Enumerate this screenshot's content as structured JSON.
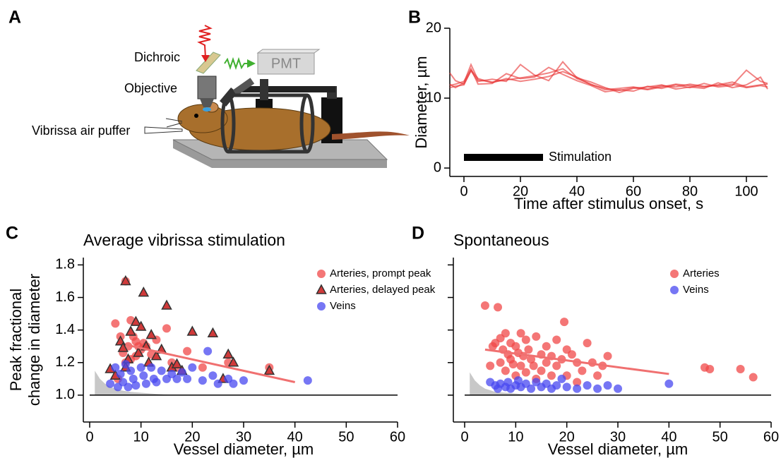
{
  "diagram": {
    "panel": "A",
    "dichroic": "Dichroic",
    "pmt": "PMT",
    "objective": "Objective",
    "puffer": "Vibrissa air puffer"
  },
  "chart_data": [
    {
      "type": "line",
      "panel": "B",
      "xlabel": "Time after stimulus onset, s",
      "ylabel": "Diameter, µm",
      "xlim": [
        -5,
        107.5
      ],
      "ylim": [
        -1.2,
        20
      ],
      "xticks": [
        0,
        20,
        40,
        60,
        80,
        100
      ],
      "yticks": [
        0,
        10,
        20
      ],
      "stimulation": {
        "label": "Stimulation",
        "span": [
          0,
          28
        ]
      },
      "x": [
        -5,
        -3,
        0,
        2.5,
        5,
        10,
        15,
        20,
        25,
        30,
        35,
        40,
        45,
        50,
        55,
        60,
        65,
        70,
        75,
        80,
        85,
        90,
        95,
        100,
        105,
        107.5
      ],
      "series": [
        {
          "color": "#e83030",
          "values": [
            12,
            11.5,
            12.2,
            14.8,
            12.6,
            12.3,
            12.6,
            12.9,
            13.2,
            13.6,
            14.2,
            12.8,
            12.0,
            11.2,
            11.4,
            11.6,
            11.3,
            11.8,
            11.6,
            12.0,
            11.7,
            11.8,
            12.0,
            11.5,
            11.8,
            11.6
          ]
        },
        {
          "color": "#e83030",
          "values": [
            11.8,
            12.0,
            12.4,
            14.2,
            12.0,
            12.1,
            13.5,
            12.8,
            13.0,
            14.4,
            13.4,
            12.5,
            11.8,
            10.9,
            11.2,
            11.0,
            11.7,
            11.4,
            11.9,
            11.5,
            12.1,
            11.6,
            11.8,
            14.0,
            12.4,
            12.1
          ]
        },
        {
          "color": "#e83030",
          "values": [
            13.6,
            12.5,
            12.0,
            13.9,
            12.4,
            12.7,
            12.4,
            14.8,
            13.3,
            12.5,
            15.2,
            12.9,
            12.3,
            11.5,
            10.8,
            11.4,
            11.6,
            11.9,
            11.3,
            11.6,
            11.4,
            12.2,
            11.5,
            11.9,
            13.0,
            11.3
          ]
        },
        {
          "color": "#e83030",
          "values": [
            11.5,
            11.7,
            11.9,
            14.0,
            12.8,
            12.2,
            12.8,
            12.4,
            12.7,
            13.1,
            13.8,
            13.0,
            11.9,
            11.4,
            11.1,
            11.5,
            11.2,
            11.6,
            12.0,
            11.8,
            11.6,
            11.9,
            12.3,
            11.6,
            11.9,
            12.0
          ]
        }
      ]
    },
    {
      "type": "scatter",
      "panel": "C",
      "title": "Average vibrissa stimulation",
      "xlabel": "Vessel diameter, µm",
      "ylabel": [
        "Peak fractional",
        "change in diameter"
      ],
      "xlim": [
        0,
        60
      ],
      "ylim": [
        0.835,
        1.845
      ],
      "xticks": [
        0,
        10,
        20,
        30,
        40,
        50,
        60
      ],
      "yticks": [
        {
          "value": 1.0,
          "label": "1.0"
        },
        1.2,
        1.4,
        1.6,
        1.8
      ],
      "legend": "upper right",
      "hline": 1.0,
      "noise_floor": {
        "color": "#c8c8c8",
        "x": [
          1,
          2,
          3,
          4,
          5,
          6,
          8,
          10,
          12,
          14,
          16
        ],
        "y": [
          1.15,
          1.1,
          1.07,
          1.05,
          1.04,
          1.03,
          1.02,
          1.015,
          1.01,
          1.005,
          1.0
        ]
      },
      "fit": {
        "color": "#f07070",
        "x": [
          7,
          40
        ],
        "y": [
          1.31,
          1.08
        ]
      },
      "series": [
        {
          "name": "Arteries, prompt peak",
          "color": "#f04848",
          "marker": "circle",
          "x": [
            5,
            5.5,
            6,
            6.5,
            7,
            7,
            7.5,
            8,
            8,
            8.5,
            9,
            9,
            9.5,
            10,
            10.5,
            11,
            12,
            13,
            15,
            16,
            17,
            19,
            22,
            27,
            35
          ],
          "values": [
            1.44,
            1.1,
            1.36,
            1.26,
            1.7,
            1.2,
            1.3,
            1.46,
            1.22,
            1.36,
            1.33,
            1.24,
            1.3,
            1.28,
            1.32,
            1.3,
            1.25,
            1.34,
            1.41,
            1.2,
            1.17,
            1.27,
            1.17,
            1.2,
            1.17
          ]
        },
        {
          "name": "Arteries, delayed peak",
          "color": "#d03a3a",
          "marker": "triangle",
          "x": [
            4,
            5,
            6,
            6.5,
            7,
            7,
            7.5,
            8,
            9,
            9.5,
            10,
            10.5,
            11,
            11.5,
            12,
            13,
            14,
            15,
            16,
            17,
            18,
            20,
            24,
            26,
            27,
            28,
            35
          ],
          "values": [
            1.16,
            1.12,
            1.33,
            1.29,
            1.7,
            1.17,
            1.22,
            1.39,
            1.45,
            1.26,
            1.42,
            1.63,
            1.3,
            1.2,
            1.37,
            1.24,
            1.28,
            1.55,
            1.17,
            1.19,
            1.15,
            1.39,
            1.38,
            1.1,
            1.25,
            1.2,
            1.15
          ]
        },
        {
          "name": "Veins",
          "color": "#4848f0",
          "marker": "circle",
          "x": [
            4,
            5,
            5.5,
            6,
            6.5,
            7,
            7.5,
            8,
            8.5,
            9,
            10,
            10.5,
            11,
            12,
            12.5,
            13,
            14,
            15,
            16,
            17,
            18,
            19,
            20,
            22,
            23,
            24,
            25,
            27,
            28,
            30,
            42.5
          ],
          "values": [
            1.07,
            1.17,
            1.05,
            1.13,
            1.08,
            1.19,
            1.05,
            1.15,
            1.1,
            1.06,
            1.17,
            1.12,
            1.07,
            1.17,
            1.1,
            1.08,
            1.15,
            1.1,
            1.13,
            1.1,
            1.14,
            1.1,
            1.17,
            1.09,
            1.27,
            1.12,
            1.07,
            1.1,
            1.07,
            1.09,
            1.09
          ]
        }
      ]
    },
    {
      "type": "scatter",
      "panel": "D",
      "title": "Spontaneous",
      "xlabel": "Vessel diameter, µm",
      "xlim": [
        0,
        60
      ],
      "ylim": [
        0.835,
        1.845
      ],
      "xticks": [
        0,
        10,
        20,
        30,
        40,
        50,
        60
      ],
      "yticks": [
        1.0,
        1.2,
        1.4,
        1.6,
        1.8
      ],
      "ytick_labels": false,
      "legend": "upper right",
      "hline": 1.0,
      "noise_floor": {
        "color": "#c8c8c8",
        "x": [
          1,
          2,
          3,
          4,
          5,
          6,
          8,
          10,
          12,
          14
        ],
        "y": [
          1.14,
          1.09,
          1.06,
          1.04,
          1.03,
          1.02,
          1.015,
          1.01,
          1.005,
          1.0
        ]
      },
      "fit": {
        "color": "#f07070",
        "x": [
          4,
          40
        ],
        "y": [
          1.28,
          1.13
        ]
      },
      "series": [
        {
          "name": "Arteries",
          "color": "#f04848",
          "marker": "circle",
          "x": [
            4,
            5,
            5.5,
            6,
            6.5,
            7,
            7,
            7.5,
            8,
            8,
            8.5,
            9,
            9,
            9.5,
            10,
            10,
            10.5,
            11,
            11,
            11.5,
            12,
            12,
            12.5,
            13,
            13.5,
            14,
            14,
            15,
            15,
            16,
            16,
            17,
            17,
            18,
            18,
            19,
            19.5,
            20,
            20,
            21,
            22,
            22,
            23,
            24,
            25,
            26,
            27,
            28,
            47,
            48,
            54,
            56.5
          ],
          "values": [
            1.55,
            1.18,
            1.3,
            1.32,
            1.54,
            1.35,
            1.2,
            1.28,
            1.38,
            1.15,
            1.25,
            1.32,
            1.22,
            1.19,
            1.3,
            1.12,
            1.26,
            1.38,
            1.18,
            1.24,
            1.34,
            1.14,
            1.28,
            1.22,
            1.18,
            1.36,
            1.1,
            1.25,
            1.15,
            1.3,
            1.2,
            1.24,
            1.12,
            1.34,
            1.18,
            1.22,
            1.45,
            1.28,
            1.12,
            1.25,
            1.2,
            1.08,
            1.15,
            1.32,
            1.2,
            1.12,
            1.18,
            1.24,
            1.17,
            1.16,
            1.16,
            1.11
          ]
        },
        {
          "name": "Veins",
          "color": "#4848f0",
          "marker": "circle",
          "x": [
            5,
            6,
            6.5,
            7,
            8,
            8.5,
            9,
            10,
            10.5,
            11,
            12,
            13,
            14,
            15,
            16,
            17,
            18,
            19,
            20,
            22,
            24,
            26,
            28,
            30,
            40
          ],
          "values": [
            1.08,
            1.06,
            1.04,
            1.07,
            1.05,
            1.08,
            1.04,
            1.06,
            1.09,
            1.05,
            1.07,
            1.04,
            1.08,
            1.05,
            1.07,
            1.04,
            1.06,
            1.1,
            1.05,
            1.04,
            1.06,
            1.04,
            1.06,
            1.04,
            1.07
          ]
        }
      ]
    }
  ]
}
